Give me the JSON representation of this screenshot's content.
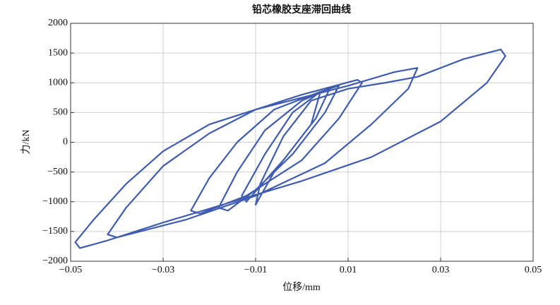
{
  "chart_data": {
    "type": "line",
    "title": "铅芯橡胶支座滞回曲线",
    "x_label": "位移/mm",
    "y_label": "力/kN",
    "color": "#3f5cb0",
    "grid": true,
    "xlim": [
      -0.05,
      0.05
    ],
    "xticks": [
      {
        "value": -0.05,
        "label": "−0.05"
      },
      {
        "value": -0.03,
        "label": "−0.03"
      },
      {
        "value": -0.01,
        "label": "−0.01"
      },
      0.01,
      0.03,
      0.05
    ],
    "ylim": [
      -2000,
      2000
    ],
    "yticks": [
      {
        "value": -2000,
        "label": "−2000"
      },
      {
        "value": -1500,
        "label": "−1500"
      },
      {
        "value": -1000,
        "label": "−1000"
      },
      {
        "value": -500,
        "label": "−500"
      },
      0,
      500,
      1000,
      1500,
      2000
    ],
    "x": [
      0.025,
      0.035,
      0.043,
      0.044,
      0.04,
      0.03,
      0.015,
      0.0,
      -0.015,
      -0.03,
      -0.042,
      -0.048,
      -0.049,
      -0.045,
      -0.038,
      -0.03,
      -0.02,
      -0.01,
      0.0,
      0.01,
      0.02,
      0.025,
      0.023,
      0.015,
      0.005,
      -0.01,
      -0.025,
      -0.04,
      -0.042,
      -0.038,
      -0.03,
      -0.02,
      -0.01,
      0.0,
      0.012,
      0.013,
      0.008,
      0.0,
      -0.012,
      -0.022,
      -0.024,
      -0.02,
      -0.014,
      -0.006,
      0.004,
      0.008,
      0.005,
      -0.002,
      -0.01,
      -0.016,
      -0.018,
      -0.014,
      -0.008,
      0.0,
      0.006,
      0.003,
      -0.004,
      -0.012,
      -0.013,
      -0.008,
      -0.002,
      0.004,
      0.002,
      -0.006,
      -0.01,
      -0.009,
      -0.004,
      0.002,
      0.01,
      0.018,
      0.025
    ],
    "values": [
      1100,
      1400,
      1560,
      1450,
      1000,
      350,
      -250,
      -650,
      -1000,
      -1350,
      -1650,
      -1780,
      -1680,
      -1300,
      -700,
      -150,
      300,
      550,
      750,
      950,
      1180,
      1250,
      900,
      300,
      -350,
      -900,
      -1300,
      -1600,
      -1550,
      -1100,
      -400,
      150,
      550,
      800,
      1050,
      1000,
      400,
      -300,
      -900,
      -1200,
      -1150,
      -600,
      0,
      550,
      850,
      950,
      500,
      -200,
      -800,
      -1150,
      -1100,
      -500,
      200,
      700,
      900,
      400,
      -300,
      -1000,
      -900,
      -200,
      500,
      850,
      300,
      -500,
      -1050,
      -700,
      100,
      700,
      900,
      1000,
      1100
    ]
  }
}
